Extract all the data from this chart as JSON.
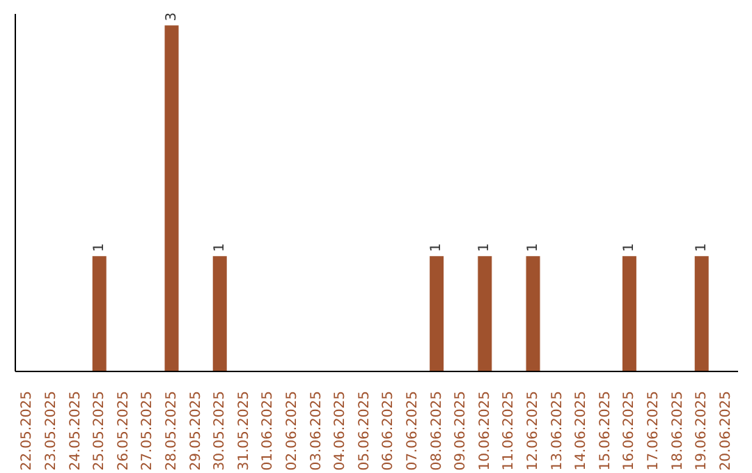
{
  "chart_data": {
    "type": "bar",
    "categories": [
      "22.05.2025",
      "23.05.2025",
      "24.05.2025",
      "25.05.2025",
      "26.05.2025",
      "27.05.2025",
      "28.05.2025",
      "29.05.2025",
      "30.05.2025",
      "31.05.2025",
      "01.06.2025",
      "02.06.2025",
      "03.06.2025",
      "04.06.2025",
      "05.06.2025",
      "06.06.2025",
      "07.06.2025",
      "08.06.2025",
      "09.06.2025",
      "10.06.2025",
      "11.06.2025",
      "12.06.2025",
      "13.06.2025",
      "14.06.2025",
      "15.06.2025",
      "16.06.2025",
      "17.06.2025",
      "18.06.2025",
      "19.06.2025",
      "20.06.2025"
    ],
    "values": [
      0,
      0,
      0,
      1,
      0,
      0,
      3,
      0,
      1,
      0,
      0,
      0,
      0,
      0,
      0,
      0,
      0,
      1,
      0,
      1,
      0,
      1,
      0,
      0,
      0,
      1,
      0,
      0,
      1,
      0
    ],
    "value_labels": [
      null,
      null,
      null,
      "1",
      null,
      null,
      "3",
      null,
      "1",
      null,
      null,
      null,
      null,
      null,
      null,
      null,
      null,
      "1",
      null,
      "1",
      null,
      "1",
      null,
      null,
      null,
      "1",
      null,
      null,
      "1",
      null
    ],
    "color": "#a0522d",
    "ylim": [
      0,
      3.1
    ],
    "grid": false
  }
}
